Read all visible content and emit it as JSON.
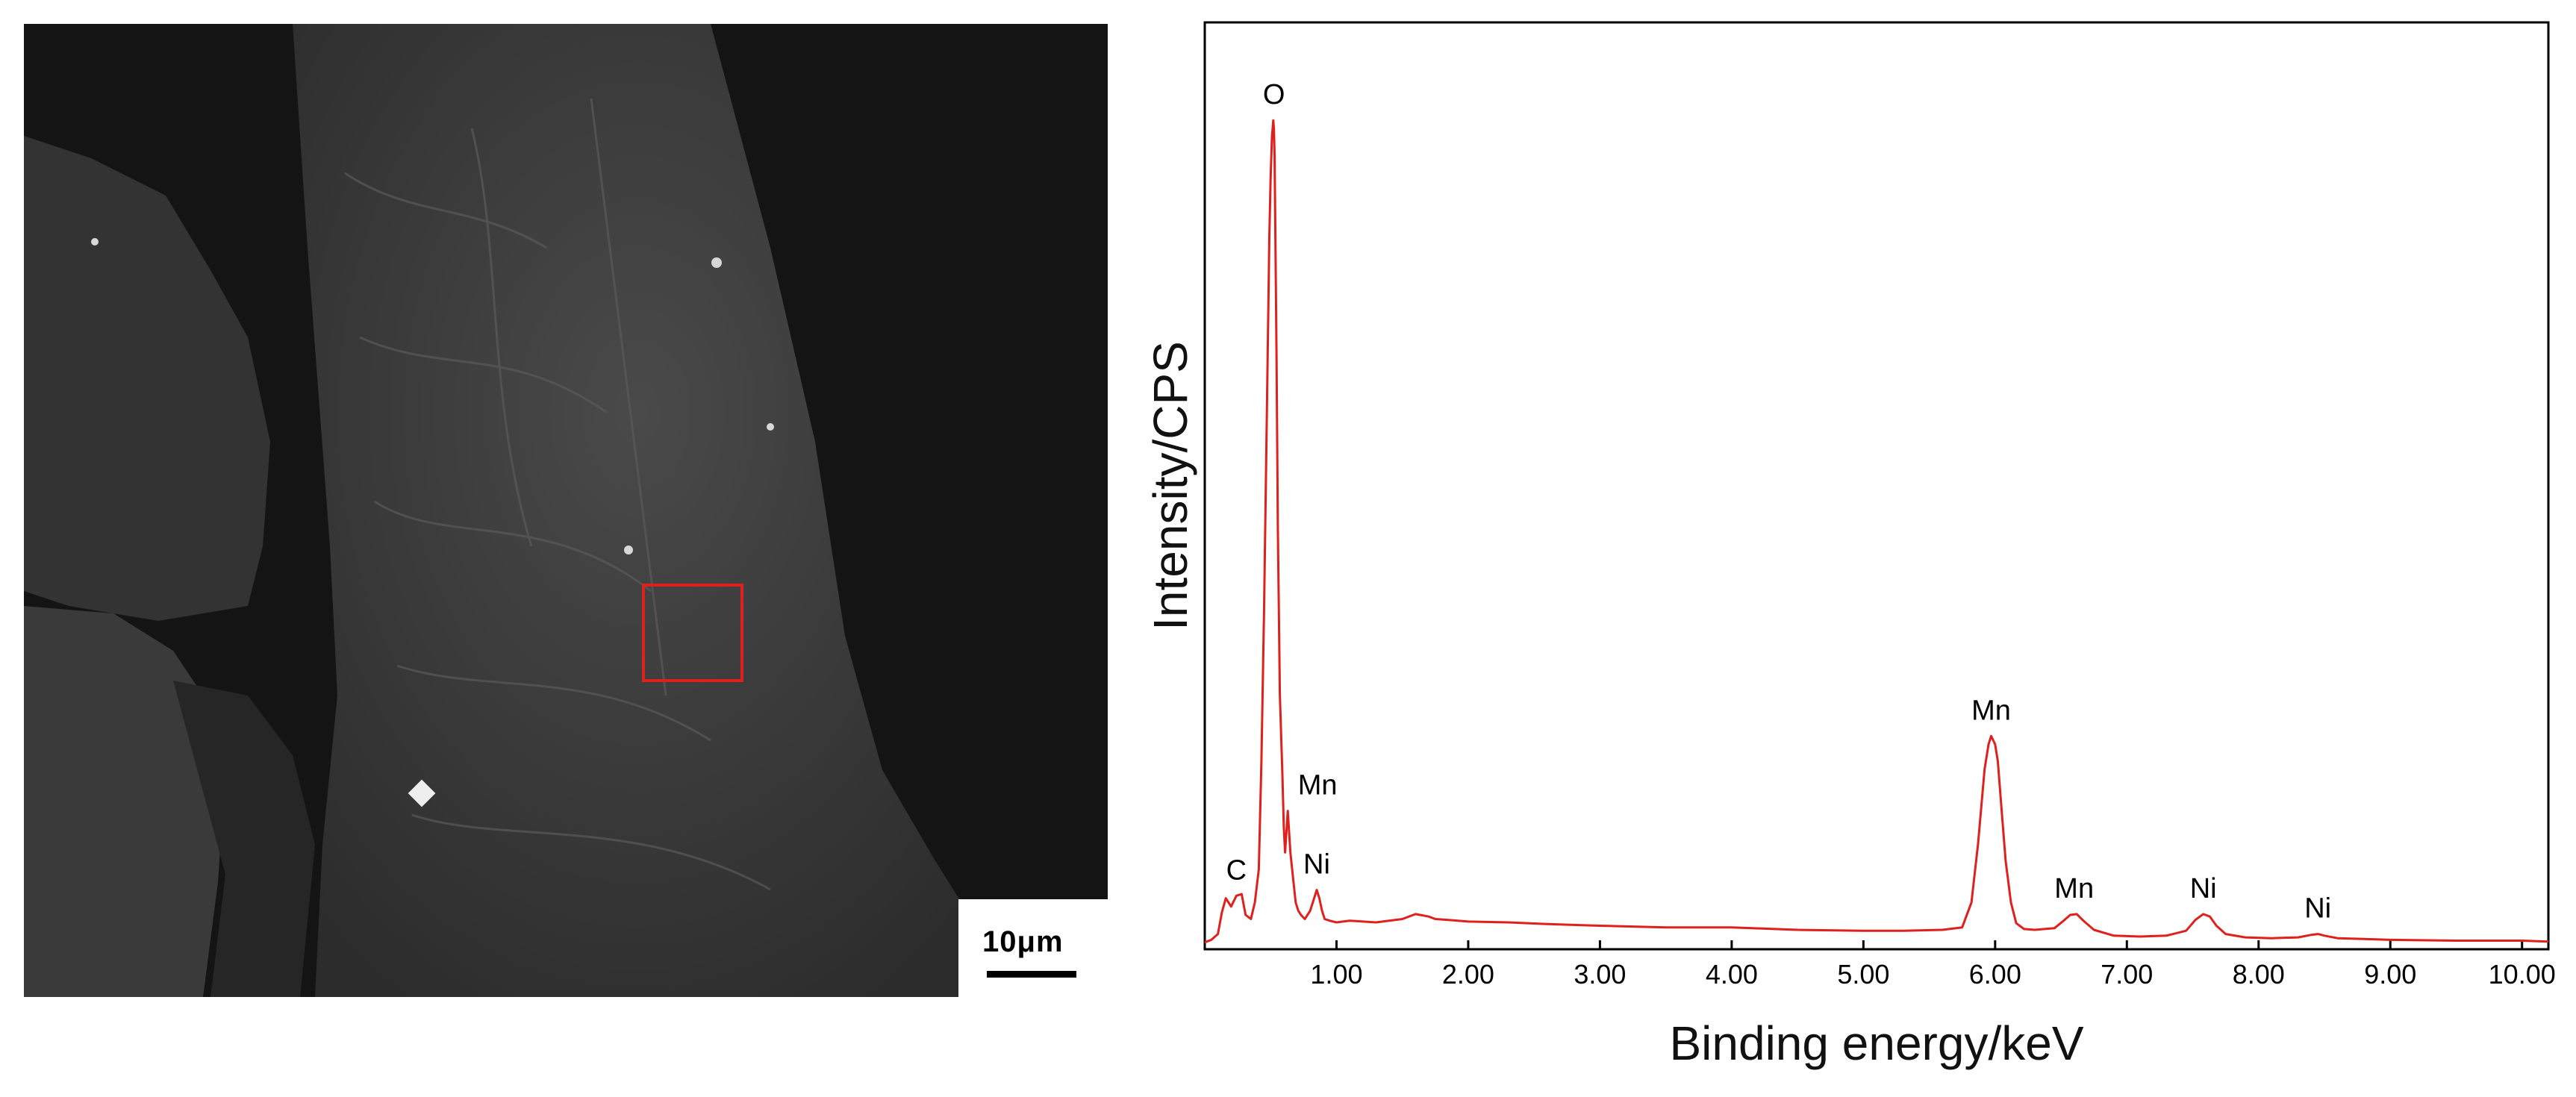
{
  "sem_image": {
    "scale_bar_label": "10μm",
    "highlight_color": "#e0201c"
  },
  "chart_data": {
    "type": "line",
    "xlabel": "Binding energy/keV",
    "ylabel": "Intensity/CPS",
    "xlim": [
      0.0,
      10.2
    ],
    "ylim": [
      0,
      100
    ],
    "x_ticks": [
      1.0,
      2.0,
      3.0,
      4.0,
      5.0,
      6.0,
      7.0,
      8.0,
      9.0,
      10.0
    ],
    "x_tick_labels": [
      "1.00",
      "2.00",
      "3.00",
      "4.00",
      "5.00",
      "6.00",
      "7.00",
      "8.00",
      "9.00",
      "10.00"
    ],
    "y_ticks_shown": false,
    "grid": false,
    "series": [
      {
        "color": "#e0201c",
        "x": [
          0.0,
          0.05,
          0.1,
          0.13,
          0.16,
          0.2,
          0.24,
          0.28,
          0.31,
          0.35,
          0.38,
          0.41,
          0.43,
          0.45,
          0.47,
          0.49,
          0.5,
          0.51,
          0.52,
          0.525,
          0.53,
          0.535,
          0.545,
          0.555,
          0.57,
          0.59,
          0.6,
          0.61,
          0.63,
          0.65,
          0.67,
          0.69,
          0.71,
          0.73,
          0.76,
          0.8,
          0.83,
          0.85,
          0.87,
          0.89,
          0.91,
          0.95,
          1.0,
          1.1,
          1.3,
          1.5,
          1.6,
          1.7,
          1.75,
          1.85,
          2.0,
          2.3,
          2.6,
          3.0,
          3.5,
          4.0,
          4.5,
          5.0,
          5.3,
          5.6,
          5.75,
          5.82,
          5.87,
          5.92,
          5.95,
          5.97,
          6.0,
          6.02,
          6.05,
          6.08,
          6.12,
          6.16,
          6.22,
          6.3,
          6.45,
          6.52,
          6.57,
          6.62,
          6.67,
          6.75,
          6.9,
          7.1,
          7.3,
          7.45,
          7.52,
          7.58,
          7.63,
          7.68,
          7.75,
          7.9,
          8.1,
          8.3,
          8.4,
          8.45,
          8.5,
          8.6,
          8.8,
          9.0,
          9.5,
          10.0,
          10.2
        ],
        "y": [
          0.2,
          0.5,
          1.2,
          3.8,
          5.5,
          4.5,
          5.8,
          6.0,
          3.5,
          3.0,
          5.0,
          9.0,
          22.0,
          40.0,
          62.0,
          85.0,
          92.0,
          97.0,
          99.0,
          98.0,
          95.0,
          87.0,
          70.0,
          50.0,
          30.0,
          20.0,
          14.0,
          11.0,
          16.0,
          11.0,
          8.0,
          5.0,
          4.0,
          3.5,
          3.0,
          4.0,
          5.5,
          6.5,
          5.5,
          4.0,
          3.0,
          2.8,
          2.6,
          2.8,
          2.6,
          3.0,
          3.6,
          3.3,
          3.0,
          2.9,
          2.7,
          2.6,
          2.4,
          2.2,
          2.0,
          2.0,
          1.7,
          1.6,
          1.6,
          1.7,
          2.0,
          5.0,
          12.0,
          21.0,
          24.0,
          25.0,
          24.0,
          22.0,
          16.0,
          10.0,
          5.0,
          2.5,
          1.8,
          1.7,
          1.9,
          2.8,
          3.5,
          3.6,
          2.8,
          1.7,
          1.0,
          0.9,
          1.0,
          1.6,
          2.9,
          3.6,
          3.3,
          2.2,
          1.2,
          0.8,
          0.7,
          0.8,
          1.1,
          1.2,
          1.0,
          0.7,
          0.6,
          0.5,
          0.4,
          0.4,
          0.3
        ]
      }
    ],
    "annotations": [
      {
        "text": "O",
        "x": 0.525,
        "y": 99.0
      },
      {
        "text": "C",
        "x": 0.24,
        "y": 5.8
      },
      {
        "text": "Mn",
        "x": 0.63,
        "y": 16.0
      },
      {
        "text": "Ni",
        "x": 0.85,
        "y": 6.5
      },
      {
        "text": "Mn",
        "x": 5.97,
        "y": 25.0
      },
      {
        "text": "Mn",
        "x": 6.6,
        "y": 3.6
      },
      {
        "text": "Ni",
        "x": 7.58,
        "y": 3.6
      },
      {
        "text": "Ni",
        "x": 8.45,
        "y": 1.2
      }
    ]
  }
}
